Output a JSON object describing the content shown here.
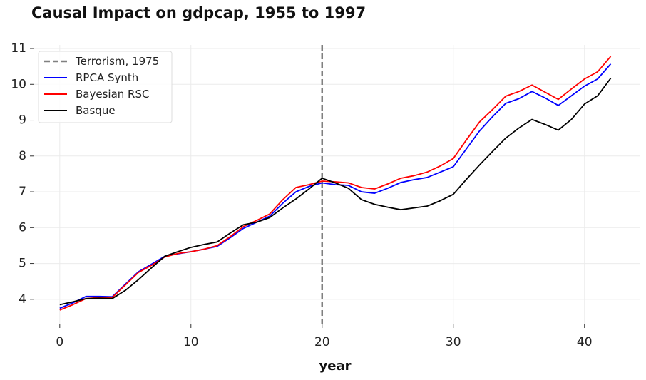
{
  "chart_data": {
    "type": "line",
    "title": "Causal Impact on gdpcap, 1955 to 1997",
    "xlabel": "year",
    "ylabel": "",
    "xlim": [
      -2,
      44.2
    ],
    "ylim": [
      3.3,
      11.1
    ],
    "xticks": [
      0,
      10,
      20,
      30,
      40
    ],
    "yticks": [
      4,
      5,
      6,
      7,
      8,
      9,
      10,
      11
    ],
    "grid": true,
    "legend_position": "top-left",
    "vline": {
      "x": 20,
      "label": "Terrorism, 1975",
      "color": "#808080",
      "style": "dashed"
    },
    "x": [
      0,
      1,
      2,
      3,
      4,
      5,
      6,
      7,
      8,
      9,
      10,
      11,
      12,
      13,
      14,
      15,
      16,
      17,
      18,
      19,
      20,
      21,
      22,
      23,
      24,
      25,
      26,
      27,
      28,
      29,
      30,
      31,
      32,
      33,
      34,
      35,
      36,
      37,
      38,
      39,
      40,
      41,
      42
    ],
    "series": [
      {
        "name": "RPCA Synth",
        "color": "#0000ff",
        "values": [
          3.75,
          3.9,
          4.08,
          4.08,
          4.07,
          4.42,
          4.77,
          4.98,
          5.2,
          5.27,
          5.33,
          5.4,
          5.48,
          5.72,
          5.98,
          6.15,
          6.32,
          6.68,
          7.0,
          7.15,
          7.25,
          7.2,
          7.18,
          7.0,
          6.96,
          7.1,
          7.26,
          7.34,
          7.4,
          7.55,
          7.7,
          8.2,
          8.7,
          9.1,
          9.47,
          9.6,
          9.8,
          9.62,
          9.41,
          9.68,
          9.95,
          10.15,
          10.57
        ]
      },
      {
        "name": "Bayesian RSC",
        "color": "#ff0000",
        "values": [
          3.7,
          3.85,
          4.02,
          4.05,
          4.05,
          4.4,
          4.75,
          4.95,
          5.18,
          5.28,
          5.33,
          5.4,
          5.5,
          5.75,
          6.03,
          6.2,
          6.38,
          6.78,
          7.12,
          7.2,
          7.3,
          7.28,
          7.25,
          7.12,
          7.08,
          7.22,
          7.38,
          7.45,
          7.55,
          7.72,
          7.93,
          8.45,
          8.95,
          9.3,
          9.67,
          9.8,
          9.98,
          9.78,
          9.58,
          9.87,
          10.15,
          10.35,
          10.78
        ]
      },
      {
        "name": "Basque",
        "color": "#000000",
        "values": [
          3.85,
          3.93,
          4.02,
          4.03,
          4.02,
          4.25,
          4.55,
          4.88,
          5.2,
          5.33,
          5.45,
          5.53,
          5.6,
          5.85,
          6.08,
          6.15,
          6.28,
          6.55,
          6.8,
          7.08,
          7.38,
          7.25,
          7.1,
          6.78,
          6.65,
          6.57,
          6.5,
          6.55,
          6.6,
          6.75,
          6.93,
          7.35,
          7.75,
          8.13,
          8.5,
          8.78,
          9.02,
          8.88,
          8.72,
          9.02,
          9.45,
          9.68,
          10.17
        ]
      }
    ]
  }
}
